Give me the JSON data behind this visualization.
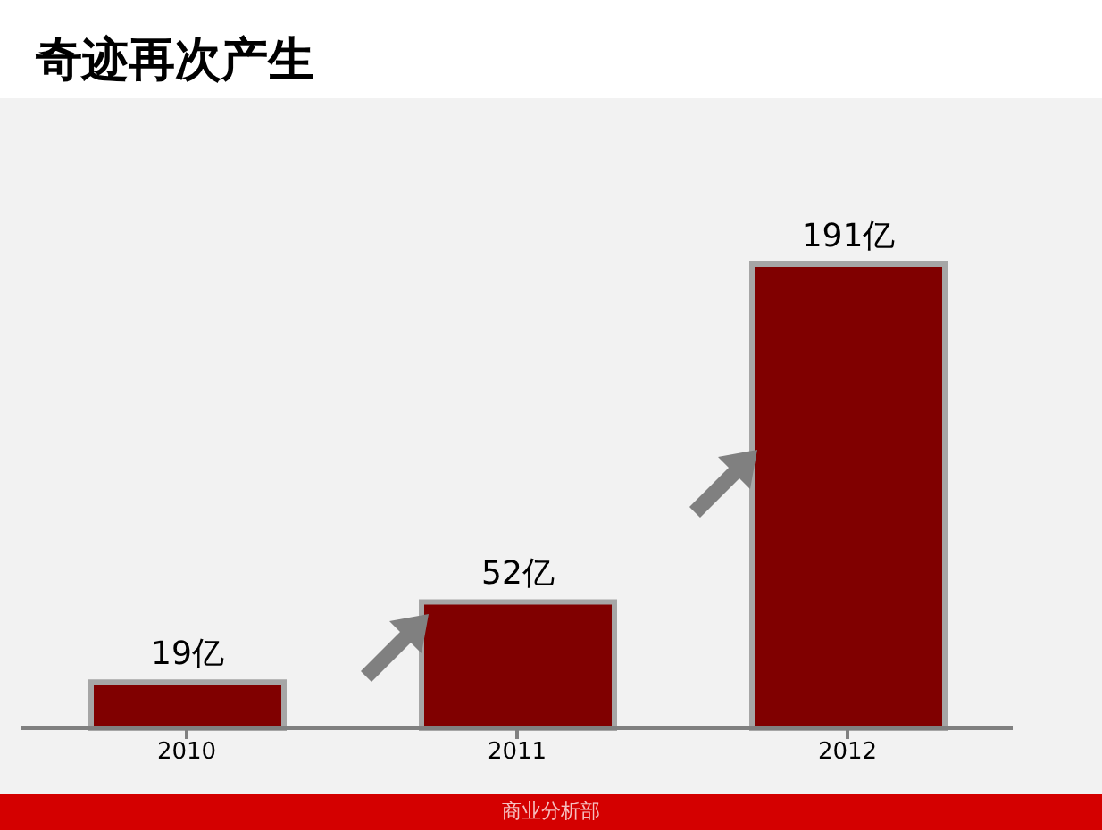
{
  "chart_data": {
    "type": "bar",
    "title": "奇迹再次产生",
    "categories": [
      "2010",
      "2011",
      "2012"
    ],
    "values": [
      19,
      52,
      191
    ],
    "value_labels": [
      "19亿",
      "52亿",
      "191亿"
    ],
    "color": "#800000",
    "annotations": [
      "商业分析部"
    ]
  }
}
